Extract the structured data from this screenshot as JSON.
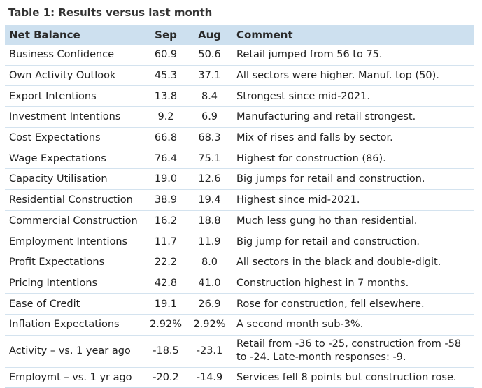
{
  "title": "Table 1: Results versus last month",
  "headers": {
    "name": "Net Balance",
    "sep": "Sep",
    "aug": "Aug",
    "comment": "Comment"
  },
  "rows": [
    {
      "name": "Business Confidence",
      "sep": "60.9",
      "aug": "50.6",
      "comment": "Retail jumped from 56 to 75."
    },
    {
      "name": "Own Activity Outlook",
      "sep": "45.3",
      "aug": "37.1",
      "comment": "All sectors were higher. Manuf. top (50)."
    },
    {
      "name": "Export Intentions",
      "sep": "13.8",
      "aug": "8.4",
      "comment": "Strongest since mid-2021."
    },
    {
      "name": "Investment Intentions",
      "sep": "9.2",
      "aug": "6.9",
      "comment": "Manufacturing and retail strongest."
    },
    {
      "name": "Cost Expectations",
      "sep": "66.8",
      "aug": "68.3",
      "comment": "Mix of rises and falls by sector."
    },
    {
      "name": "Wage Expectations",
      "sep": "76.4",
      "aug": "75.1",
      "comment": "Highest for construction (86)."
    },
    {
      "name": "Capacity Utilisation",
      "sep": "19.0",
      "aug": "12.6",
      "comment": "Big jumps for retail and construction."
    },
    {
      "name": "Residential Construction",
      "sep": "38.9",
      "aug": "19.4",
      "comment": "Highest since mid-2021."
    },
    {
      "name": "Commercial Construction",
      "sep": "16.2",
      "aug": "18.8",
      "comment": "Much less gung ho than residential."
    },
    {
      "name": "Employment Intentions",
      "sep": "11.7",
      "aug": "11.9",
      "comment": "Big jump for retail and construction."
    },
    {
      "name": "Profit Expectations",
      "sep": "22.2",
      "aug": "8.0",
      "comment": "All sectors in the black and double-digit."
    },
    {
      "name": "Pricing Intentions",
      "sep": "42.8",
      "aug": "41.0",
      "comment": "Construction highest in 7 months."
    },
    {
      "name": "Ease of Credit",
      "sep": "19.1",
      "aug": "26.9",
      "comment": "Rose for construction, fell elsewhere."
    },
    {
      "name": "Inflation Expectations",
      "sep": "2.92%",
      "aug": "2.92%",
      "comment": "A second month sub-3%."
    },
    {
      "name": "Activity – vs. 1 year ago",
      "sep": "-18.5",
      "aug": "-23.1",
      "comment": "Retail from -36 to -25, construction from -58 to -24. Late-month responses: -9."
    },
    {
      "name": "Employmt – vs. 1 yr ago",
      "sep": "-20.2",
      "aug": "-14.9",
      "comment": "Services fell 8 points but construction rose."
    }
  ],
  "colors": {
    "header_bg": "#cde0ef",
    "row_rule": "#d4e3ef"
  }
}
